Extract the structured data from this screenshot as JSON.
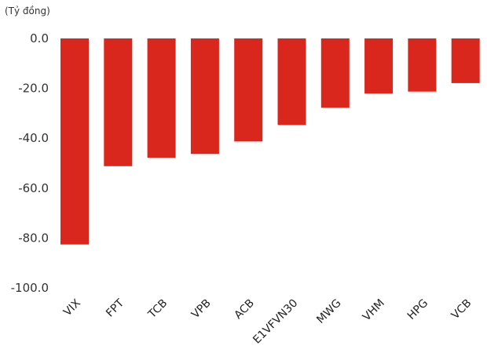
{
  "chart_data": {
    "type": "bar",
    "unit_label": "(Tỷ đồng)",
    "categories": [
      "VIX",
      "FPT",
      "TCB",
      "VPB",
      "ACB",
      "E1VFVN30",
      "MWG",
      "VHM",
      "HPG",
      "VCB"
    ],
    "series": [
      {
        "values": [
          -82.6,
          -51.2,
          -47.8,
          -46.3,
          -41.3,
          -34.7,
          -27.8,
          -22.1,
          -21.3,
          -17.9
        ]
      }
    ],
    "y_ticks": [
      "0.0",
      "-20.0",
      "-40.0",
      "-60.0",
      "-80.0",
      "-100.0"
    ],
    "ylim": [
      -100,
      0
    ],
    "bar_color": "#d9271e",
    "grid": false,
    "legend": "none"
  }
}
